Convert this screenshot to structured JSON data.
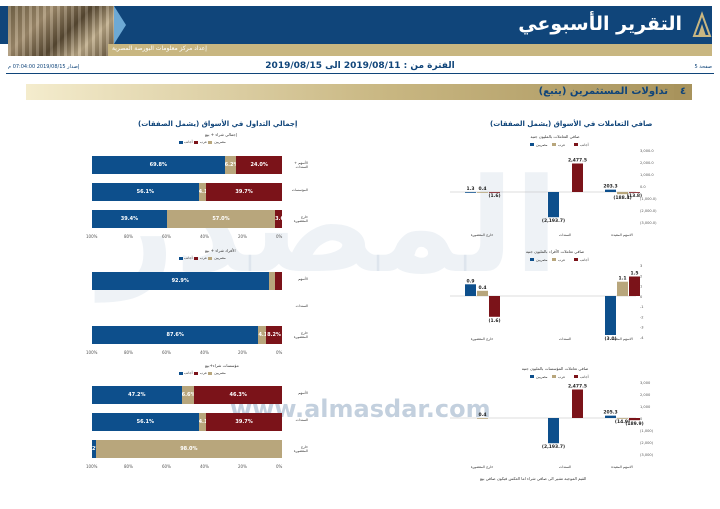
{
  "header": {
    "title": "التقرير الأسبوعي",
    "subtitle": "إعداد مركز معلومات البورصة المصرية",
    "page_label": "صفحة 5",
    "issued": "إصدار 2019/08/15 07:04:00 م",
    "period": "الفترة من : 2019/08/11 الى 2019/08/15"
  },
  "section": {
    "number": "٤",
    "title": "تداولات المستثمرين (يتبع)"
  },
  "watermark": {
    "logo_text": "المصدر",
    "url": "www.almasdar.com"
  },
  "colors": {
    "navy": "#10457a",
    "gold": "#c8b681",
    "maroon": "#7b1319",
    "blue": "#0d4f8c",
    "tan": "#b8a67c"
  },
  "left_panel": {
    "title": "إجمالي التداول في الأسواق (يشمل الصفقات)",
    "legend": [
      "مصريين",
      "عرب",
      "أجانب"
    ],
    "chart1": {
      "subtitle": "إجمالي شراء + بيع",
      "rows": [
        {
          "label": "الأسهم + السندات",
          "egy": 69.8,
          "arab": 6.2,
          "foreign": 24.0,
          "egy_label": "69.8%",
          "arab_label": "6.2%",
          "foreign_label": "24.0%"
        },
        {
          "label": "المؤسسات",
          "egy": 56.1,
          "arab": 4.1,
          "foreign": 39.7,
          "egy_label": "56.1%",
          "arab_label": "4.1%",
          "foreign_label": "39.7%"
        },
        {
          "label": "خارج المقصورة",
          "egy": 39.4,
          "arab": 57.0,
          "foreign": 3.6,
          "egy_label": "39.4%",
          "arab_label": "57.0%",
          "foreign_label": "3.6%"
        }
      ]
    },
    "chart2": {
      "subtitle": "الأفراد شراء + بيع",
      "rows": [
        {
          "label": "الأسهم",
          "egy": 92.9,
          "arab": 3.6,
          "foreign": 3.5,
          "egy_label": "92.9%",
          "arab_label": "",
          "foreign_label": ""
        },
        {
          "label": "السندات",
          "egy": 0,
          "arab": 0,
          "foreign": 0,
          "egy_label": "",
          "arab_label": "",
          "foreign_label": ""
        },
        {
          "label": "خارج المقصورة",
          "egy": 87.6,
          "arab": 4.1,
          "foreign": 8.2,
          "egy_label": "87.6%",
          "arab_label": "4.1%",
          "foreign_label": "8.2%"
        }
      ]
    },
    "chart3": {
      "subtitle": "مؤسسات شراء+بيع",
      "rows": [
        {
          "label": "الأسهم",
          "egy": 47.2,
          "arab": 6.6,
          "foreign": 46.3,
          "egy_label": "47.2%",
          "arab_label": "6.6%",
          "foreign_label": "46.3%"
        },
        {
          "label": "السندات",
          "egy": 56.1,
          "arab": 4.1,
          "foreign": 39.7,
          "egy_label": "56.1%",
          "arab_label": "4.1%",
          "foreign_label": "39.7%"
        },
        {
          "label": "خارج المقصورة",
          "egy": 2.0,
          "arab": 98.0,
          "foreign": 0,
          "egy_label": "2%",
          "arab_label": "98.0%",
          "foreign_label": ""
        }
      ]
    },
    "axis_ticks": [
      "0%",
      "20%",
      "40%",
      "60%",
      "80%",
      "100%"
    ]
  },
  "right_panel": {
    "title": "صافي التعاملات في الأسواق (يشمل الصفقات)",
    "legend": [
      "مصريين",
      "عرب",
      "أجانب"
    ],
    "categories": [
      "الاسهم المقيدة",
      "السندات",
      "خارج المقصورة"
    ],
    "chart1": {
      "subtitle": "صافي التعاملات بالمليون جنيه",
      "values": [
        [
          203.3,
          -188.4,
          -13.8
        ],
        [
          -2193.7,
          0,
          2477.5
        ],
        [
          1.3,
          0.4,
          -1.6
        ]
      ],
      "labels": [
        [
          "203.3",
          "(188.4)",
          "(13.8)"
        ],
        [
          "(2,193.7)",
          "",
          "2,477.5"
        ],
        [
          "1.3",
          "0.4",
          "(1.6)"
        ]
      ],
      "ticks": [
        "3,000.0",
        "2,000.0",
        "1,000.0",
        "0.0",
        "(1,000.0)",
        "(2,000.0)",
        "(3,000.0)"
      ],
      "ylabel": "بالمليون جنيه"
    },
    "chart2": {
      "subtitle": "صافي تعاملات الأفراد بالمليون جنيه",
      "values": [
        [
          -3.0,
          1.1,
          1.5
        ],
        [
          0,
          0,
          0
        ],
        [
          0.9,
          0.4,
          -1.6
        ]
      ],
      "labels": [
        [
          "(3.0)",
          "1.1",
          "1.5"
        ],
        [
          "",
          "",
          ""
        ],
        [
          "0.9",
          "0.4",
          "(1.6)"
        ]
      ],
      "ticks": [
        "3",
        "2",
        "1",
        "0",
        "-1",
        "-2",
        "-3",
        "-4"
      ]
    },
    "chart3": {
      "subtitle": "صافي تعاملات المؤسسات بالمليون جنيه",
      "values": [
        [
          205.3,
          -14.9,
          -189.9
        ],
        [
          -2193.7,
          0,
          2477.5
        ],
        [
          0,
          0.4,
          0
        ]
      ],
      "labels": [
        [
          "205.3",
          "(14.9)",
          "(189.9)"
        ],
        [
          "(2,193.7)",
          "",
          "2,477.5"
        ],
        [
          "",
          "0.4",
          ""
        ]
      ],
      "ticks": [
        "3,000",
        "2,000",
        "1,000",
        "0",
        "(1,000)",
        "(2,000)",
        "(3,000)"
      ]
    },
    "footnote": "القيم الموجبة تشير الى صافي شراء اما العكس فيكون صافي بيع"
  }
}
